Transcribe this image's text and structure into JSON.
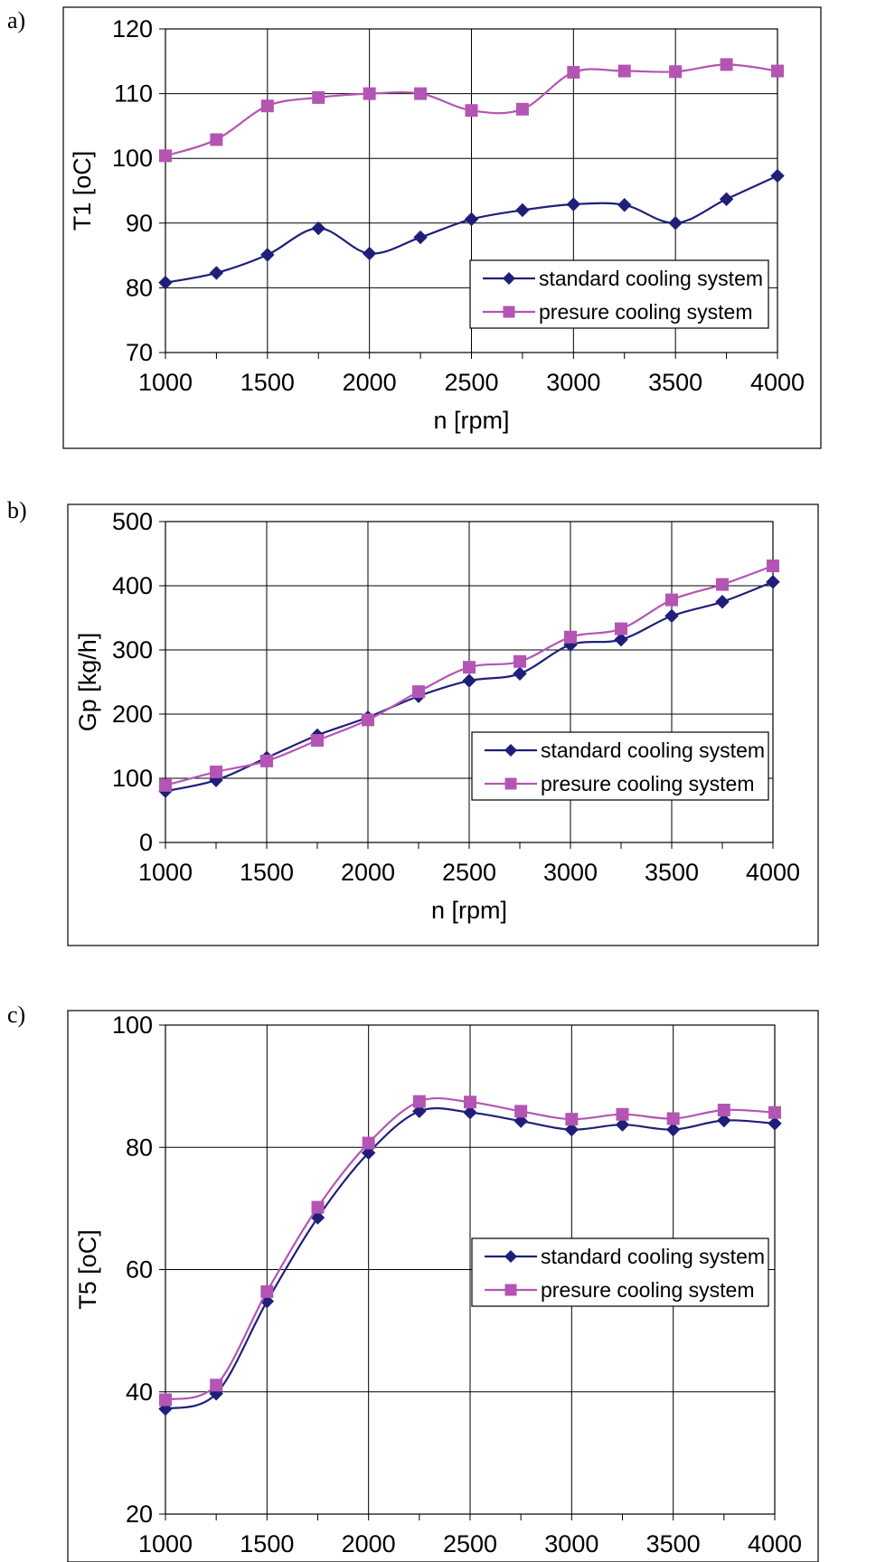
{
  "colors": {
    "standard": "#1f1f7a",
    "presure": "#b455b4",
    "grid": "#000000"
  },
  "chart_data": [
    {
      "panel": "a)",
      "type": "line",
      "xlabel": "n  [rpm]",
      "ylabel": "T1  [oC]",
      "xlim": [
        1000,
        4000
      ],
      "ylim": [
        70,
        120
      ],
      "xticks": [
        1000,
        1500,
        2000,
        2500,
        3000,
        3500,
        4000
      ],
      "yticks": [
        70,
        80,
        90,
        100,
        110,
        120
      ],
      "grid": true,
      "legend_position": "bottom-right",
      "x": [
        1000,
        1250,
        1500,
        1750,
        2000,
        2250,
        2500,
        2750,
        3000,
        3250,
        3500,
        3750,
        4000
      ],
      "series": [
        {
          "name": "standard cooling system",
          "marker": "diamond",
          "values": [
            80.8,
            82.3,
            85.1,
            89.2,
            85.3,
            87.8,
            90.6,
            92.0,
            92.9,
            92.8,
            90.0,
            93.7,
            97.3
          ]
        },
        {
          "name": "presure cooling system",
          "marker": "square",
          "values": [
            100.4,
            102.9,
            108.1,
            109.4,
            110.0,
            110.0,
            107.4,
            107.6,
            113.3,
            113.5,
            113.4,
            114.5,
            113.5
          ]
        }
      ]
    },
    {
      "panel": "b)",
      "type": "line",
      "xlabel": "n  [rpm]",
      "ylabel": "Gp [kg/h]",
      "xlim": [
        1000,
        4000
      ],
      "ylim": [
        0,
        500
      ],
      "xticks": [
        1000,
        1500,
        2000,
        2500,
        3000,
        3500,
        4000
      ],
      "yticks": [
        0,
        100,
        200,
        300,
        400,
        500
      ],
      "grid": true,
      "legend_position": "bottom-right",
      "x": [
        1000,
        1250,
        1500,
        1750,
        2000,
        2250,
        2500,
        2750,
        3000,
        3250,
        3500,
        3750,
        4000
      ],
      "series": [
        {
          "name": "standard cooling system",
          "marker": "diamond",
          "values": [
            80,
            97,
            132,
            167,
            195,
            228,
            252,
            263,
            308,
            316,
            353,
            375,
            406
          ]
        },
        {
          "name": "presure cooling system",
          "marker": "square",
          "values": [
            89,
            110,
            127,
            159,
            191,
            235,
            273,
            282,
            320,
            333,
            378,
            402,
            431
          ]
        }
      ]
    },
    {
      "panel": "c)",
      "type": "line",
      "xlabel": "n  [rpm]",
      "ylabel": "T5 [oC]",
      "xlim": [
        1000,
        4000
      ],
      "ylim": [
        20,
        100
      ],
      "xticks": [
        1000,
        1500,
        2000,
        2500,
        3000,
        3500,
        4000
      ],
      "yticks": [
        20,
        40,
        60,
        80,
        100
      ],
      "grid": true,
      "legend_position": "bottom-right",
      "x": [
        1000,
        1250,
        1500,
        1750,
        2000,
        2250,
        2500,
        2750,
        3000,
        3250,
        3500,
        3750,
        4000
      ],
      "series": [
        {
          "name": "standard cooling system",
          "marker": "diamond",
          "values": [
            37.2,
            39.7,
            54.8,
            68.5,
            79.1,
            85.9,
            85.7,
            84.3,
            82.9,
            83.7,
            82.9,
            84.4,
            83.9
          ]
        },
        {
          "name": "presure cooling system",
          "marker": "square",
          "values": [
            38.7,
            41.1,
            56.4,
            70.2,
            80.7,
            87.5,
            87.4,
            85.9,
            84.6,
            85.4,
            84.7,
            86.1,
            85.7
          ]
        }
      ]
    }
  ]
}
